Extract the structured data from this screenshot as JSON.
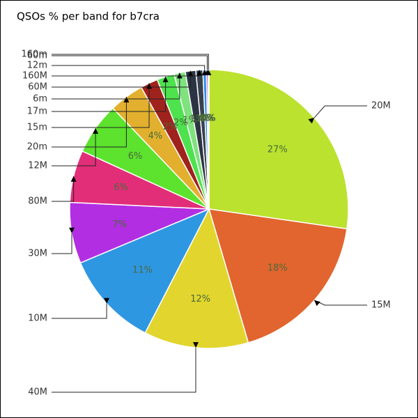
{
  "chart_data": {
    "type": "pie",
    "title": "QSOs % per band for b7cra",
    "categories": [
      "20M",
      "15M",
      "40M",
      "10M",
      "30M",
      "80M",
      "12M",
      "20m",
      "15m",
      "17m",
      "6m",
      "60M",
      "160M",
      "12m",
      "60m",
      "160m"
    ],
    "values": [
      27,
      18,
      12,
      11,
      7,
      6,
      6,
      4,
      2,
      2,
      1.3,
      1.2,
      0.8,
      0.4,
      0.2,
      0.1
    ],
    "value_labels": [
      "27%",
      "18%",
      "12%",
      "11%",
      "7%",
      "6%",
      "6%",
      "4%",
      "2%",
      "2%",
      "1%",
      "1%",
      "1%",
      "0%",
      "0%",
      "0%"
    ],
    "colors": [
      "#bbe22e",
      "#e2642e",
      "#e2d52e",
      "#2e97e2",
      "#b22ee2",
      "#e22e78",
      "#5de22e",
      "#e2b02e",
      "#a0221c",
      "#4ee24e",
      "#7fe27f",
      "#2c3444",
      "#38424f",
      "#2e8ae2",
      "#9e3ee2",
      "#e23ec0"
    ]
  }
}
